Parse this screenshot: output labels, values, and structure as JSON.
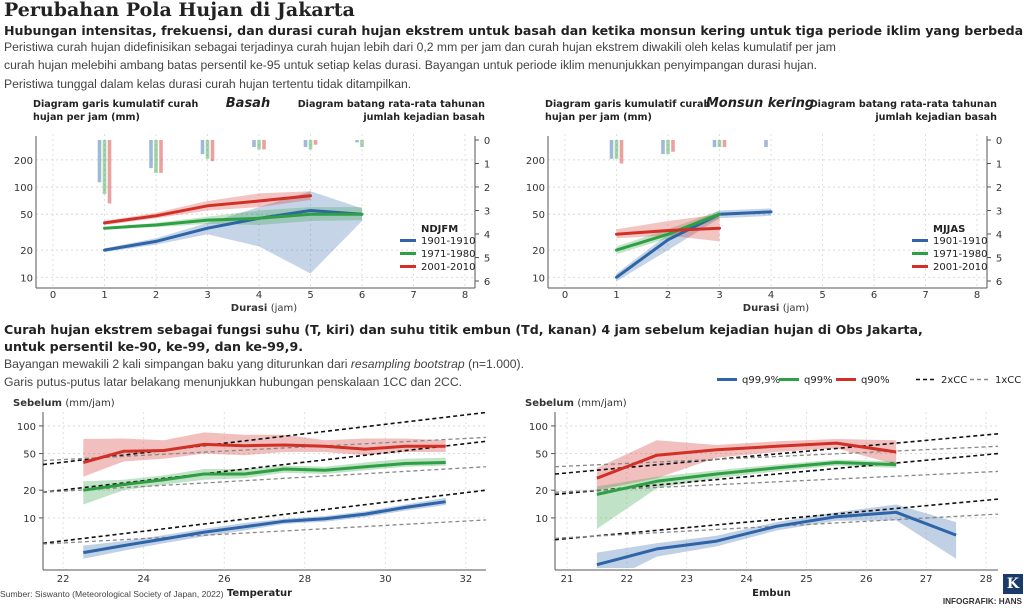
{
  "header": {
    "title": "Perubahan Pola Hujan di Jakarta",
    "subtitle": "Hubungan intensitas, frekuensi, dan durasi curah hujan ekstrem untuk basah dan ketika monsun kering untuk tiga periode iklim yang berbeda.",
    "desc_lines": [
      "Peristiwa curah hujan didefinisikan sebagai terjadinya curah hujan lebih dari 0,2 mm per jam dan curah hujan ekstrem diwakili oleh kelas kumulatif per jam",
      "curah hujan melebihi ambang batas persentil ke-95 untuk setiap kelas durasi. Bayangan untuk periode iklim menunjukkan penyimpangan durasi hujan.",
      "Peristiwa tunggal dalam kelas durasi curah hujan tertentu tidak ditampilkan."
    ]
  },
  "section2": {
    "heading_lines": [
      "Curah hujan ekstrem sebagai fungsi suhu (T, kiri) dan suhu titik embun (Td, kanan) 4 jam sebelum kejadian hujan di Obs Jakarta,",
      "untuk persentil ke-90, ke-99, dan ke-99,9."
    ],
    "desc_prefix": "Bayangan mewakili 2 kali simpangan baku yang diturunkan dari ",
    "desc_italic": "resampling bootstrap",
    "desc_suffix": " (n=1.000).",
    "desc_line2": "Garis putus-putus latar belakang menunjukkan hubungan penskalaan 1CC dan 2CC."
  },
  "footer": {
    "source": "Sumber: Siswanto (Meteorological Society of Japan, 2022)",
    "credit": "INFOGRAFIK: HANS",
    "logo": "K"
  },
  "colors": {
    "blue": "#2e64a8",
    "green": "#2ea043",
    "red": "#d22f27"
  },
  "chart_data": [
    {
      "type": "line",
      "title": "Basah",
      "left_caption": [
        "Diagram garis kumulatif curah",
        "hujan per jam (mm)"
      ],
      "right_caption": [
        "Diagram batang rata-rata tahunan",
        "jumlah kejadian basah"
      ],
      "xlabel": "Durasi",
      "xunit": "(jam)",
      "xlim": [
        0,
        8
      ],
      "xticks": [
        "0",
        "1",
        "2",
        "3",
        "4",
        "5",
        "6",
        "7",
        "8"
      ],
      "yscale": "log",
      "ylim": [
        8,
        300
      ],
      "yticks": [
        10,
        20,
        50,
        100,
        200
      ],
      "ytick_labels": [
        "10",
        "20",
        "50",
        "100",
        "200"
      ],
      "y2ticks": [
        "0",
        "1",
        "2",
        "3",
        "4",
        "5",
        "6"
      ],
      "legend_title": "NDJFM",
      "series": [
        {
          "name": "1901-1910",
          "color": "blue",
          "x": [
            1,
            2,
            3,
            4,
            5,
            6
          ],
          "y": [
            20,
            25,
            35,
            45,
            55,
            50
          ],
          "band_upper": [
            21,
            27,
            40,
            60,
            90,
            58
          ],
          "band_lower": [
            19,
            23,
            30,
            22,
            11,
            42
          ],
          "bars": [
            1.8,
            1.2,
            0.6,
            0.3,
            0.3,
            0.1
          ]
        },
        {
          "name": "1971-1980",
          "color": "green",
          "x": [
            1,
            2,
            3,
            4,
            5,
            6
          ],
          "y": [
            35,
            38,
            43,
            45,
            50,
            50
          ],
          "band_upper": [
            36,
            40,
            47,
            55,
            60,
            60
          ],
          "band_lower": [
            34,
            36,
            39,
            38,
            42,
            43
          ],
          "bars": [
            2.3,
            1.4,
            0.8,
            0.4,
            0.4,
            0.3
          ]
        },
        {
          "name": "2001-2010",
          "color": "red",
          "x": [
            1,
            2,
            3,
            4,
            5
          ],
          "y": [
            40,
            48,
            62,
            70,
            80
          ],
          "band_upper": [
            42,
            52,
            70,
            85,
            90
          ],
          "band_lower": [
            38,
            45,
            55,
            60,
            72
          ],
          "bars": [
            2.7,
            1.4,
            0.9,
            0.4,
            0.2
          ]
        }
      ]
    },
    {
      "type": "line",
      "title": "Monsun kering",
      "left_caption": [
        "Diagram garis kumulatif curah",
        "hujan per jam (mm)"
      ],
      "right_caption": [
        "Diagram batang rata-rata tahunan",
        "jumlah kejadian basah"
      ],
      "xlabel": "Durasi",
      "xunit": "(jam)",
      "xlim": [
        0,
        8
      ],
      "xticks": [
        "0",
        "1",
        "2",
        "3",
        "4",
        "5",
        "6",
        "7",
        "8"
      ],
      "yscale": "log",
      "ylim": [
        8,
        300
      ],
      "yticks": [
        10,
        20,
        50,
        100,
        200
      ],
      "ytick_labels": [
        "10",
        "20",
        "50",
        "100",
        "200"
      ],
      "y2ticks": [
        "0",
        "1",
        "2",
        "3",
        "4",
        "5",
        "6"
      ],
      "legend_title": "MJJAS",
      "series": [
        {
          "name": "1901-1910",
          "color": "blue",
          "x": [
            1,
            2,
            3,
            4
          ],
          "y": [
            10,
            26,
            50,
            53
          ],
          "band_upper": [
            11,
            30,
            55,
            58
          ],
          "band_lower": [
            9,
            20,
            45,
            48
          ],
          "bars": [
            0.8,
            0.6,
            0.3,
            0.3
          ]
        },
        {
          "name": "1971-1980",
          "color": "green",
          "x": [
            1,
            2,
            3
          ],
          "y": [
            20,
            30,
            50
          ],
          "band_upper": [
            22,
            34,
            55
          ],
          "band_lower": [
            18,
            27,
            45
          ],
          "bars": [
            0.8,
            0.6,
            0.3
          ]
        },
        {
          "name": "2001-2010",
          "color": "red",
          "x": [
            1,
            2,
            3
          ],
          "y": [
            30,
            33,
            35
          ],
          "band_upper": [
            34,
            42,
            50
          ],
          "band_lower": [
            27,
            29,
            25
          ],
          "bars": [
            1.0,
            0.5,
            0.3
          ]
        }
      ]
    },
    {
      "type": "line",
      "title": "",
      "ylabel": "Sebelum",
      "yunit": "(mm/jam)",
      "xlabel": "Temperatur",
      "xlim": [
        21.5,
        32.5
      ],
      "xticks": [
        "22",
        "24",
        "26",
        "28",
        "30",
        "32"
      ],
      "xtick_values": [
        22,
        24,
        26,
        28,
        30,
        32
      ],
      "yscale": "log",
      "ylim": [
        3,
        125
      ],
      "yticks": [
        10,
        20,
        50,
        100
      ],
      "ytick_labels": [
        "10",
        "20",
        "50",
        "100"
      ],
      "cc_lines": [
        {
          "name": "2xCC",
          "x": [
            21.5,
            32.5
          ],
          "y": [
            [
              38,
              140
            ],
            [
              19,
              68
            ],
            [
              5.3,
              20
            ]
          ]
        },
        {
          "name": "1xCC",
          "x": [
            21.5,
            32.5
          ],
          "y": [
            [
              42,
              75
            ],
            [
              19,
              36
            ],
            [
              5.2,
              9.5
            ]
          ]
        }
      ],
      "series": [
        {
          "name": "q99,9%",
          "color": "blue",
          "x": [
            22.5,
            23.5,
            24.5,
            25.5,
            26.5,
            27.5,
            28.5,
            29.5,
            30.5,
            31.5
          ],
          "y": [
            4.2,
            5.0,
            5.9,
            7.0,
            8.0,
            9.2,
            9.8,
            11,
            13,
            15
          ],
          "band_upper": [
            5.0,
            5.6,
            6.5,
            7.6,
            8.8,
            9.8,
            10.5,
            11.8,
            14,
            16.5
          ],
          "band_lower": [
            3.6,
            4.4,
            5.3,
            6.3,
            7.3,
            8.6,
            9.1,
            10.2,
            12,
            13.8
          ]
        },
        {
          "name": "q99%",
          "color": "green",
          "x": [
            22.5,
            23.5,
            24.5,
            25.5,
            26.5,
            27.5,
            28.5,
            29.5,
            30.5,
            31.5
          ],
          "y": [
            20,
            23,
            26,
            30,
            30,
            34,
            33,
            36,
            39,
            40
          ],
          "band_upper": [
            25,
            26,
            29,
            34,
            34,
            37,
            36,
            40,
            44,
            45
          ],
          "band_lower": [
            14,
            20,
            23,
            26,
            27,
            31,
            30,
            33,
            36,
            37
          ]
        },
        {
          "name": "q90%",
          "color": "red",
          "x": [
            22.5,
            23.5,
            24.5,
            25.5,
            26.5,
            27.5,
            28.5,
            29.5,
            30.5,
            31.5
          ],
          "y": [
            40,
            53,
            54,
            63,
            61,
            62,
            60,
            56,
            60,
            60
          ],
          "band_upper": [
            72,
            73,
            70,
            85,
            80,
            80,
            70,
            73,
            73,
            70
          ],
          "band_lower": [
            28,
            41,
            44,
            50,
            48,
            52,
            52,
            48,
            52,
            52
          ]
        }
      ]
    },
    {
      "type": "line",
      "title": "",
      "ylabel": "Sebelum",
      "yunit": "(mm/jam)",
      "xlabel": "Embun",
      "xlim": [
        20.8,
        28.2
      ],
      "xticks": [
        "21",
        "22",
        "23",
        "24",
        "25",
        "26",
        "27",
        "28"
      ],
      "xtick_values": [
        21,
        22,
        23,
        24,
        25,
        26,
        27,
        28
      ],
      "yscale": "log",
      "ylim": [
        3,
        125
      ],
      "yticks": [
        10,
        20,
        50,
        100
      ],
      "ytick_labels": [
        "10",
        "20",
        "50",
        "100"
      ],
      "legend_items": [
        "q99,9%",
        "q99%",
        "q90%",
        "2xCC",
        "1xCC"
      ],
      "cc_lines": [
        {
          "name": "2xCC",
          "x": [
            20.8,
            28.2
          ],
          "y": [
            [
              30,
              82
            ],
            [
              18,
              50
            ],
            [
              5.8,
              16
            ]
          ]
        },
        {
          "name": "1xCC",
          "x": [
            20.8,
            28.2
          ],
          "y": [
            [
              36,
              60
            ],
            [
              19,
              32
            ],
            [
              6.0,
              11
            ]
          ]
        }
      ],
      "series": [
        {
          "name": "q99,9%",
          "color": "blue",
          "x": [
            21.5,
            22.5,
            23.5,
            24.5,
            25.5,
            26.5,
            27.5
          ],
          "y": [
            3.1,
            4.6,
            5.6,
            8.1,
            10.3,
            11.5,
            6.5
          ],
          "band_upper": [
            4.2,
            5.3,
            6.4,
            9.0,
            11.5,
            14,
            9.0
          ],
          "band_lower": [
            1.8,
            3.8,
            4.9,
            7.3,
            9.3,
            9.4,
            3.6
          ]
        },
        {
          "name": "q99%",
          "color": "green",
          "x": [
            21.5,
            22.5,
            23.5,
            24.5,
            25.5,
            26.5
          ],
          "y": [
            18,
            25,
            30,
            35,
            40,
            38
          ],
          "band_upper": [
            22,
            28,
            33,
            38,
            43,
            41
          ],
          "band_lower": [
            7.6,
            21,
            27,
            32,
            37,
            35
          ]
        },
        {
          "name": "q90%",
          "color": "red",
          "x": [
            21.5,
            22.5,
            23.5,
            24.5,
            25.5,
            26.5
          ],
          "y": [
            27,
            48,
            55,
            60,
            65,
            52
          ],
          "band_upper": [
            35,
            70,
            62,
            68,
            72,
            70
          ],
          "band_lower": [
            20,
            27,
            45,
            52,
            57,
            38
          ]
        }
      ]
    }
  ]
}
